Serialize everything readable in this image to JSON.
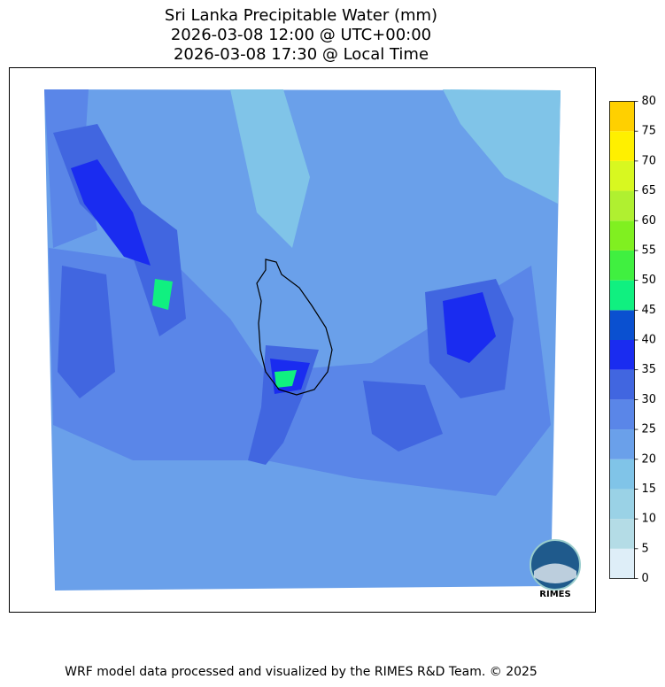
{
  "title": {
    "lines": [
      "Sri Lanka Precipitable Water (mm)",
      "2026-03-08 12:00 @ UTC+00:00",
      "2026-03-08 17:30 @ Local Time"
    ]
  },
  "colorbar": {
    "levels": [
      0,
      5,
      10,
      15,
      20,
      25,
      30,
      35,
      40,
      45,
      50,
      55,
      60,
      65,
      70,
      75,
      80
    ],
    "colors": [
      "#deeef8",
      "#b4dce6",
      "#9ad2e6",
      "#80c4e8",
      "#6aa0ea",
      "#5a86e8",
      "#4166e0",
      "#1a2cf0",
      "#0a50d0",
      "#10f080",
      "#40f040",
      "#80f020",
      "#b0f030",
      "#d8f820",
      "#fff000",
      "#ffd000"
    ]
  },
  "logo": {
    "text": "RIMES"
  },
  "footer": "WRF model data processed and visualized by the RIMES R&D Team. © 2025"
}
